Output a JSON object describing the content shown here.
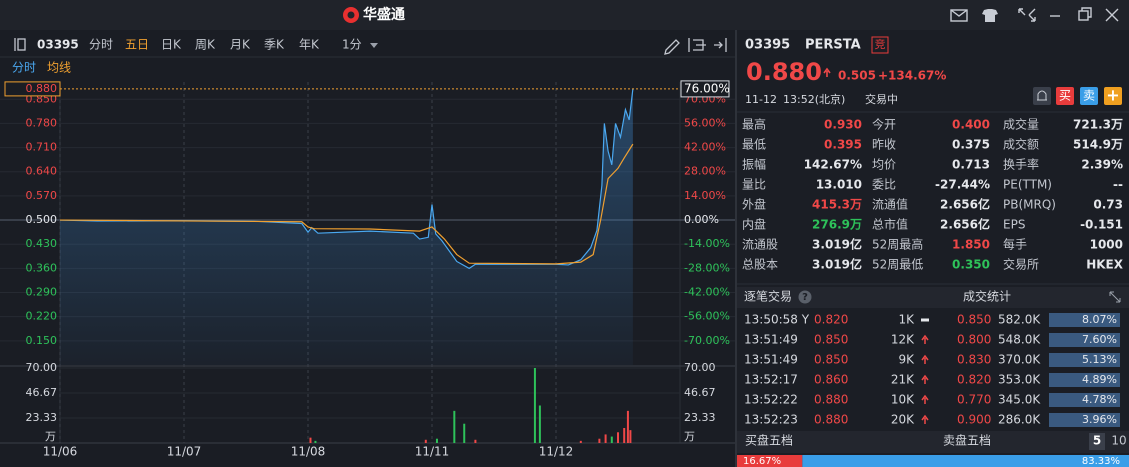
{
  "app": {
    "title": "华盛通"
  },
  "toolbar": {
    "code": "03395",
    "tabs": [
      "分时",
      "五日",
      "日K",
      "周K",
      "月K",
      "季K",
      "年K"
    ],
    "active_tab": 1,
    "interval": "1分"
  },
  "chart_data": [
    {
      "type": "line",
      "series": [
        {
          "name": "分时",
          "color": "#4aa8f0",
          "x": [
            0,
            0.3,
            1.0,
            1.6,
            1.95,
            2.0,
            2.03,
            2.08,
            2.5,
            2.85,
            2.9,
            2.97,
            3.0,
            3.03,
            3.08,
            3.2,
            3.3,
            3.35,
            3.7,
            4.0,
            4.1,
            4.2,
            4.28,
            4.33,
            4.37,
            4.39,
            4.42,
            4.45,
            4.48,
            4.52,
            4.56,
            4.59,
            4.62
          ],
          "values": [
            0.5,
            0.497,
            0.498,
            0.496,
            0.49,
            0.465,
            0.478,
            0.462,
            0.468,
            0.462,
            0.445,
            0.45,
            0.545,
            0.46,
            0.44,
            0.38,
            0.36,
            0.372,
            0.372,
            0.372,
            0.37,
            0.385,
            0.42,
            0.47,
            0.6,
            0.78,
            0.7,
            0.66,
            0.78,
            0.74,
            0.82,
            0.79,
            0.88
          ]
        },
        {
          "name": "均线",
          "color": "#f0a030",
          "x": [
            0,
            1.95,
            2.0,
            2.05,
            2.5,
            2.9,
            3.0,
            3.1,
            3.2,
            3.3,
            4.0,
            4.2,
            4.3,
            4.36,
            4.42,
            4.5,
            4.55,
            4.62
          ],
          "values": [
            0.5,
            0.495,
            0.48,
            0.475,
            0.474,
            0.468,
            0.48,
            0.445,
            0.4,
            0.375,
            0.373,
            0.378,
            0.4,
            0.5,
            0.62,
            0.65,
            0.68,
            0.72
          ]
        }
      ],
      "xlim": [
        0,
        5
      ],
      "xticks": [
        {
          "value": 0,
          "label": "11/06"
        },
        {
          "value": 1,
          "label": "11/07"
        },
        {
          "value": 2,
          "label": "11/08"
        },
        {
          "value": 3,
          "label": "11/11"
        },
        {
          "value": 4,
          "label": "11/12"
        }
      ],
      "ylim": [
        0.08,
        0.9
      ],
      "yticks": [
        {
          "value": 0.85,
          "label": "0.850"
        },
        {
          "value": 0.78,
          "label": "0.780"
        },
        {
          "value": 0.71,
          "label": "0.710"
        },
        {
          "value": 0.64,
          "label": "0.640"
        },
        {
          "value": 0.57,
          "label": "0.570"
        },
        {
          "value": 0.5,
          "label": "0.500"
        },
        {
          "value": 0.43,
          "label": "0.430"
        },
        {
          "value": 0.36,
          "label": "0.360"
        },
        {
          "value": 0.29,
          "label": "0.290"
        },
        {
          "value": 0.22,
          "label": "0.220"
        },
        {
          "value": 0.15,
          "label": "0.150"
        }
      ],
      "y2lim": [
        -84,
        80
      ],
      "y2ticks": [
        {
          "value": 70,
          "label": "70.00%"
        },
        {
          "value": 56,
          "label": "56.00%"
        },
        {
          "value": 42,
          "label": "42.00%"
        },
        {
          "value": 28,
          "label": "28.00%"
        },
        {
          "value": 14,
          "label": "14.00%"
        },
        {
          "value": 0,
          "label": "0.00%"
        },
        {
          "value": -14,
          "label": "-14.00%"
        },
        {
          "value": -28,
          "label": "-28.00%"
        },
        {
          "value": -42,
          "label": "-42.00%"
        },
        {
          "value": -56,
          "label": "-56.00%"
        },
        {
          "value": -70,
          "label": "-70.00%"
        }
      ],
      "current": {
        "value": 0.88,
        "label": "0.880"
      },
      "current_change": {
        "value": 76,
        "label": "76.00%"
      },
      "up_color": "#f04848",
      "down_color": "#2ec25a"
    },
    {
      "type": "bar",
      "x": [
        2.02,
        2.06,
        2.95,
        3.04,
        3.18,
        3.26,
        3.35,
        3.83,
        3.87,
        4.2,
        4.35,
        4.4,
        4.45,
        4.5,
        4.55,
        4.58,
        4.6
      ],
      "values": [
        5,
        2,
        3,
        4,
        30,
        18,
        3,
        70,
        35,
        2,
        4,
        8,
        6,
        10,
        14,
        30,
        12
      ],
      "colors": [
        "#f04848",
        "#2ec25a",
        "#f04848",
        "#2ec25a",
        "#2ec25a",
        "#2ec25a",
        "#f04848",
        "#2ec25a",
        "#2ec25a",
        "#f04848",
        "#f04848",
        "#f04848",
        "#2ec25a",
        "#f04848",
        "#f04848",
        "#f04848",
        "#f04848"
      ],
      "xlim": [
        0,
        5
      ],
      "ylim": [
        0,
        70
      ],
      "yticks": [
        {
          "value": 70,
          "label": "70.00"
        },
        {
          "value": 46.67,
          "label": "46.67"
        },
        {
          "value": 23.33,
          "label": "23.33"
        }
      ],
      "unit": "万"
    }
  ],
  "quote": {
    "code": "03395",
    "name": "PERSTA",
    "badge": "竞",
    "price": "0.880",
    "change": "0.505",
    "change_pct": "+134.67%",
    "date": "11-12",
    "time": "13:52(北京)",
    "status": "交易中",
    "buy": "买",
    "sell": "卖",
    "add": "+"
  },
  "stats": {
    "rows": [
      [
        {
          "label": "最高",
          "value": "0.930",
          "color": "#f04848"
        },
        {
          "label": "今开",
          "value": "0.400",
          "color": "#f04848"
        },
        {
          "label": "成交量",
          "value": "721.3万",
          "color": "#e6e8ec"
        }
      ],
      [
        {
          "label": "最低",
          "value": "0.395",
          "color": "#f04848"
        },
        {
          "label": "昨收",
          "value": "0.375",
          "color": "#e6e8ec"
        },
        {
          "label": "成交额",
          "value": "514.9万",
          "color": "#e6e8ec"
        }
      ],
      [
        {
          "label": "振幅",
          "value": "142.67%",
          "color": "#e6e8ec"
        },
        {
          "label": "均价",
          "value": "0.713",
          "color": "#e6e8ec"
        },
        {
          "label": "换手率",
          "value": "2.39%",
          "color": "#e6e8ec"
        }
      ],
      [
        {
          "label": "量比",
          "value": "13.010",
          "color": "#e6e8ec"
        },
        {
          "label": "委比",
          "value": "-27.44%",
          "color": "#e6e8ec"
        },
        {
          "label": "PE(TTM)",
          "value": "--",
          "color": "#e6e8ec"
        }
      ],
      [
        {
          "label": "外盘",
          "value": "415.3万",
          "color": "#f04848"
        },
        {
          "label": "流通值",
          "value": "2.656亿",
          "color": "#e6e8ec"
        },
        {
          "label": "PB(MRQ)",
          "value": "0.73",
          "color": "#e6e8ec"
        }
      ],
      [
        {
          "label": "内盘",
          "value": "276.9万",
          "color": "#2ec25a"
        },
        {
          "label": "总市值",
          "value": "2.656亿",
          "color": "#e6e8ec"
        },
        {
          "label": "EPS",
          "value": "-0.151",
          "color": "#e6e8ec"
        }
      ],
      [
        {
          "label": "流通股",
          "value": "3.019亿",
          "color": "#e6e8ec"
        },
        {
          "label": "52周最高",
          "value": "1.850",
          "color": "#f04848"
        },
        {
          "label": "每手",
          "value": "1000",
          "color": "#e6e8ec"
        }
      ],
      [
        {
          "label": "总股本",
          "value": "3.019亿",
          "color": "#e6e8ec"
        },
        {
          "label": "52周最低",
          "value": "0.350",
          "color": "#2ec25a"
        },
        {
          "label": "交易所",
          "value": "HKEX",
          "color": "#e6e8ec"
        }
      ]
    ]
  },
  "trades": {
    "title": "逐笔交易",
    "help": "?",
    "rows": [
      {
        "time": "13:50:58 Y",
        "price": "0.820",
        "volume": "1K",
        "dir": "flat"
      },
      {
        "time": "13:51:49",
        "price": "0.850",
        "volume": "12K",
        "dir": "up"
      },
      {
        "time": "13:51:49",
        "price": "0.850",
        "volume": "9K",
        "dir": "up"
      },
      {
        "time": "13:52:17",
        "price": "0.860",
        "volume": "21K",
        "dir": "up"
      },
      {
        "time": "13:52:22",
        "price": "0.880",
        "volume": "10K",
        "dir": "up"
      },
      {
        "time": "13:52:23",
        "price": "0.880",
        "volume": "20K",
        "dir": "up"
      }
    ]
  },
  "deal_stats": {
    "title": "成交统计",
    "rows": [
      {
        "price": "0.850",
        "volume": "582.0K",
        "share": "8.07%"
      },
      {
        "price": "0.800",
        "volume": "548.0K",
        "share": "7.60%"
      },
      {
        "price": "0.830",
        "volume": "370.0K",
        "share": "5.13%"
      },
      {
        "price": "0.820",
        "volume": "353.0K",
        "share": "4.89%"
      },
      {
        "price": "0.770",
        "volume": "345.0K",
        "share": "4.78%"
      },
      {
        "price": "0.900",
        "volume": "286.0K",
        "share": "3.96%"
      }
    ]
  },
  "order_book": {
    "bid_title": "买盘五档",
    "ask_title": "卖盘五档",
    "levels": [
      "5",
      "10"
    ],
    "values": [
      16.67,
      83.33
    ],
    "value_labels": [
      "16.67%",
      "83.33%"
    ],
    "colors": [
      "#e83c3c",
      "#3a9ee8"
    ]
  }
}
